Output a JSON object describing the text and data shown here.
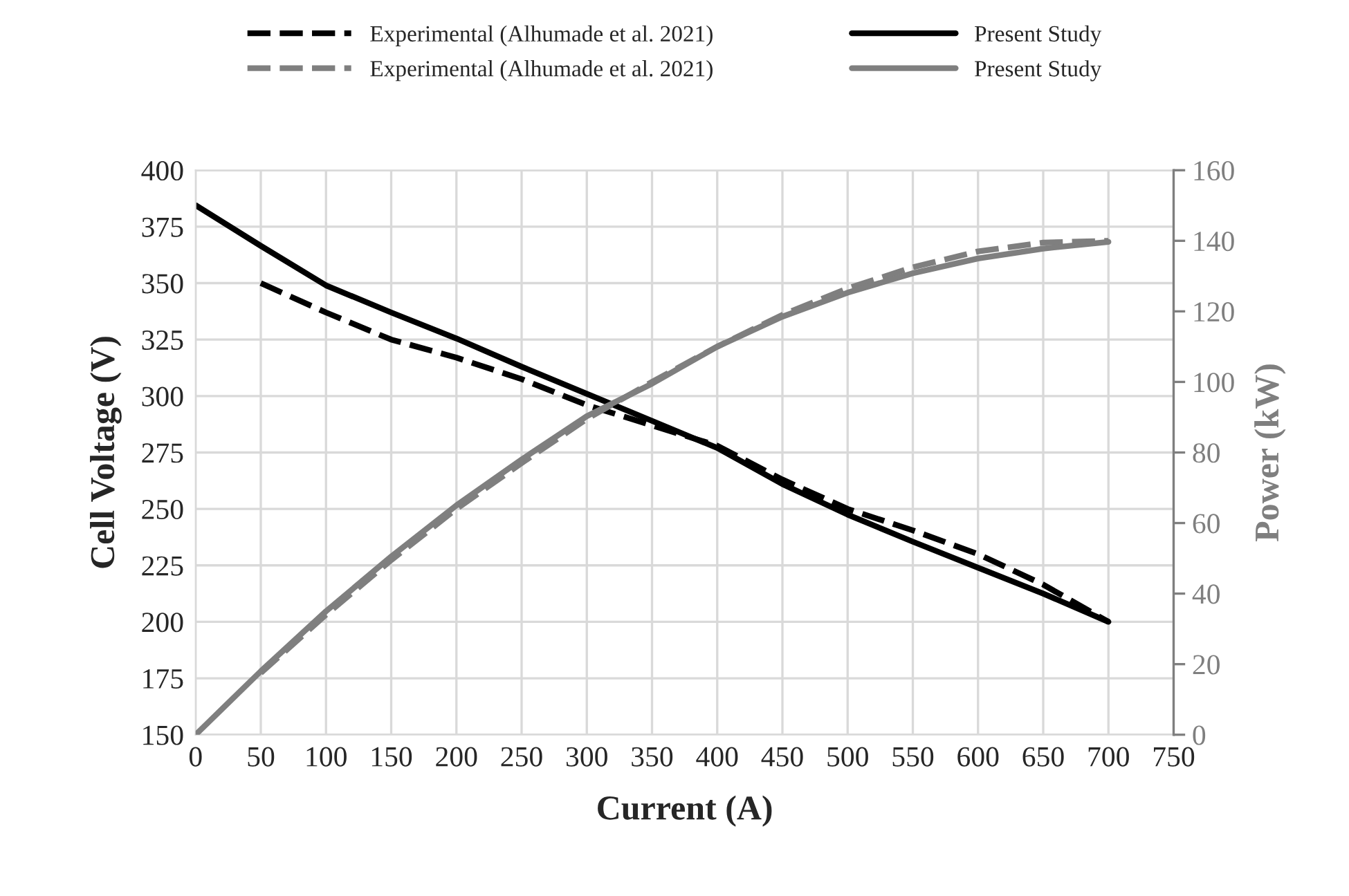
{
  "chart_data": {
    "type": "line",
    "xlabel": "Current (A)",
    "ylabel": "Cell Voltage (V)",
    "y2label": "Power (kW)",
    "xlim": [
      0,
      750
    ],
    "xticks": [
      0,
      50,
      100,
      150,
      200,
      250,
      300,
      350,
      400,
      450,
      500,
      550,
      600,
      650,
      700,
      750
    ],
    "ylim": [
      150,
      400
    ],
    "yticks": [
      150,
      175,
      200,
      225,
      250,
      275,
      300,
      325,
      350,
      375,
      400
    ],
    "y2lim": [
      0,
      160
    ],
    "y2ticks": [
      0,
      20,
      40,
      60,
      80,
      100,
      120,
      140,
      160
    ],
    "grid": true,
    "legend": "top",
    "marker": "none",
    "series": [
      {
        "name": "Experimental (Alhumade et al. 2021)",
        "color": "#000000",
        "line_style": "dashed",
        "x": [
          50,
          100,
          150,
          200,
          250,
          300,
          350,
          400,
          450,
          500,
          550,
          600,
          650,
          700
        ],
        "values": [
          350,
          337,
          325,
          317,
          307.5,
          296,
          287,
          278,
          263,
          250,
          240.5,
          230,
          216.5,
          200
        ]
      },
      {
        "name": "Present Study",
        "color": "#000000",
        "line_style": "solid",
        "x": [
          0,
          50,
          100,
          150,
          200,
          250,
          300,
          350,
          400,
          450,
          500,
          550,
          600,
          650,
          700
        ],
        "values": [
          384.5,
          366.5,
          349,
          337,
          325.5,
          313,
          301,
          289,
          277,
          261,
          247.5,
          235.5,
          224,
          212.5,
          200
        ]
      },
      {
        "name": "Experimental (Alhumade et al. 2021)",
        "color": "#7f7f7f",
        "line_style": "dashed",
        "axis": "y2",
        "x": [
          50,
          100,
          150,
          200,
          250,
          300,
          350,
          400,
          450,
          500,
          550,
          600,
          650,
          700
        ],
        "values": [
          17.5,
          34,
          49.5,
          64,
          77,
          89.5,
          100,
          110,
          119,
          126.5,
          132.5,
          137,
          139.5,
          140
        ]
      },
      {
        "name": "Present Study",
        "color": "#7f7f7f",
        "line_style": "solid",
        "axis": "y2",
        "x": [
          0,
          50,
          100,
          150,
          200,
          250,
          300,
          350,
          400,
          450,
          500,
          550,
          600,
          650,
          700
        ],
        "values": [
          0,
          18,
          35,
          50.5,
          65,
          78,
          90.3,
          99.5,
          110,
          118.5,
          125.3,
          130.8,
          135,
          137.8,
          139.7
        ]
      }
    ]
  }
}
